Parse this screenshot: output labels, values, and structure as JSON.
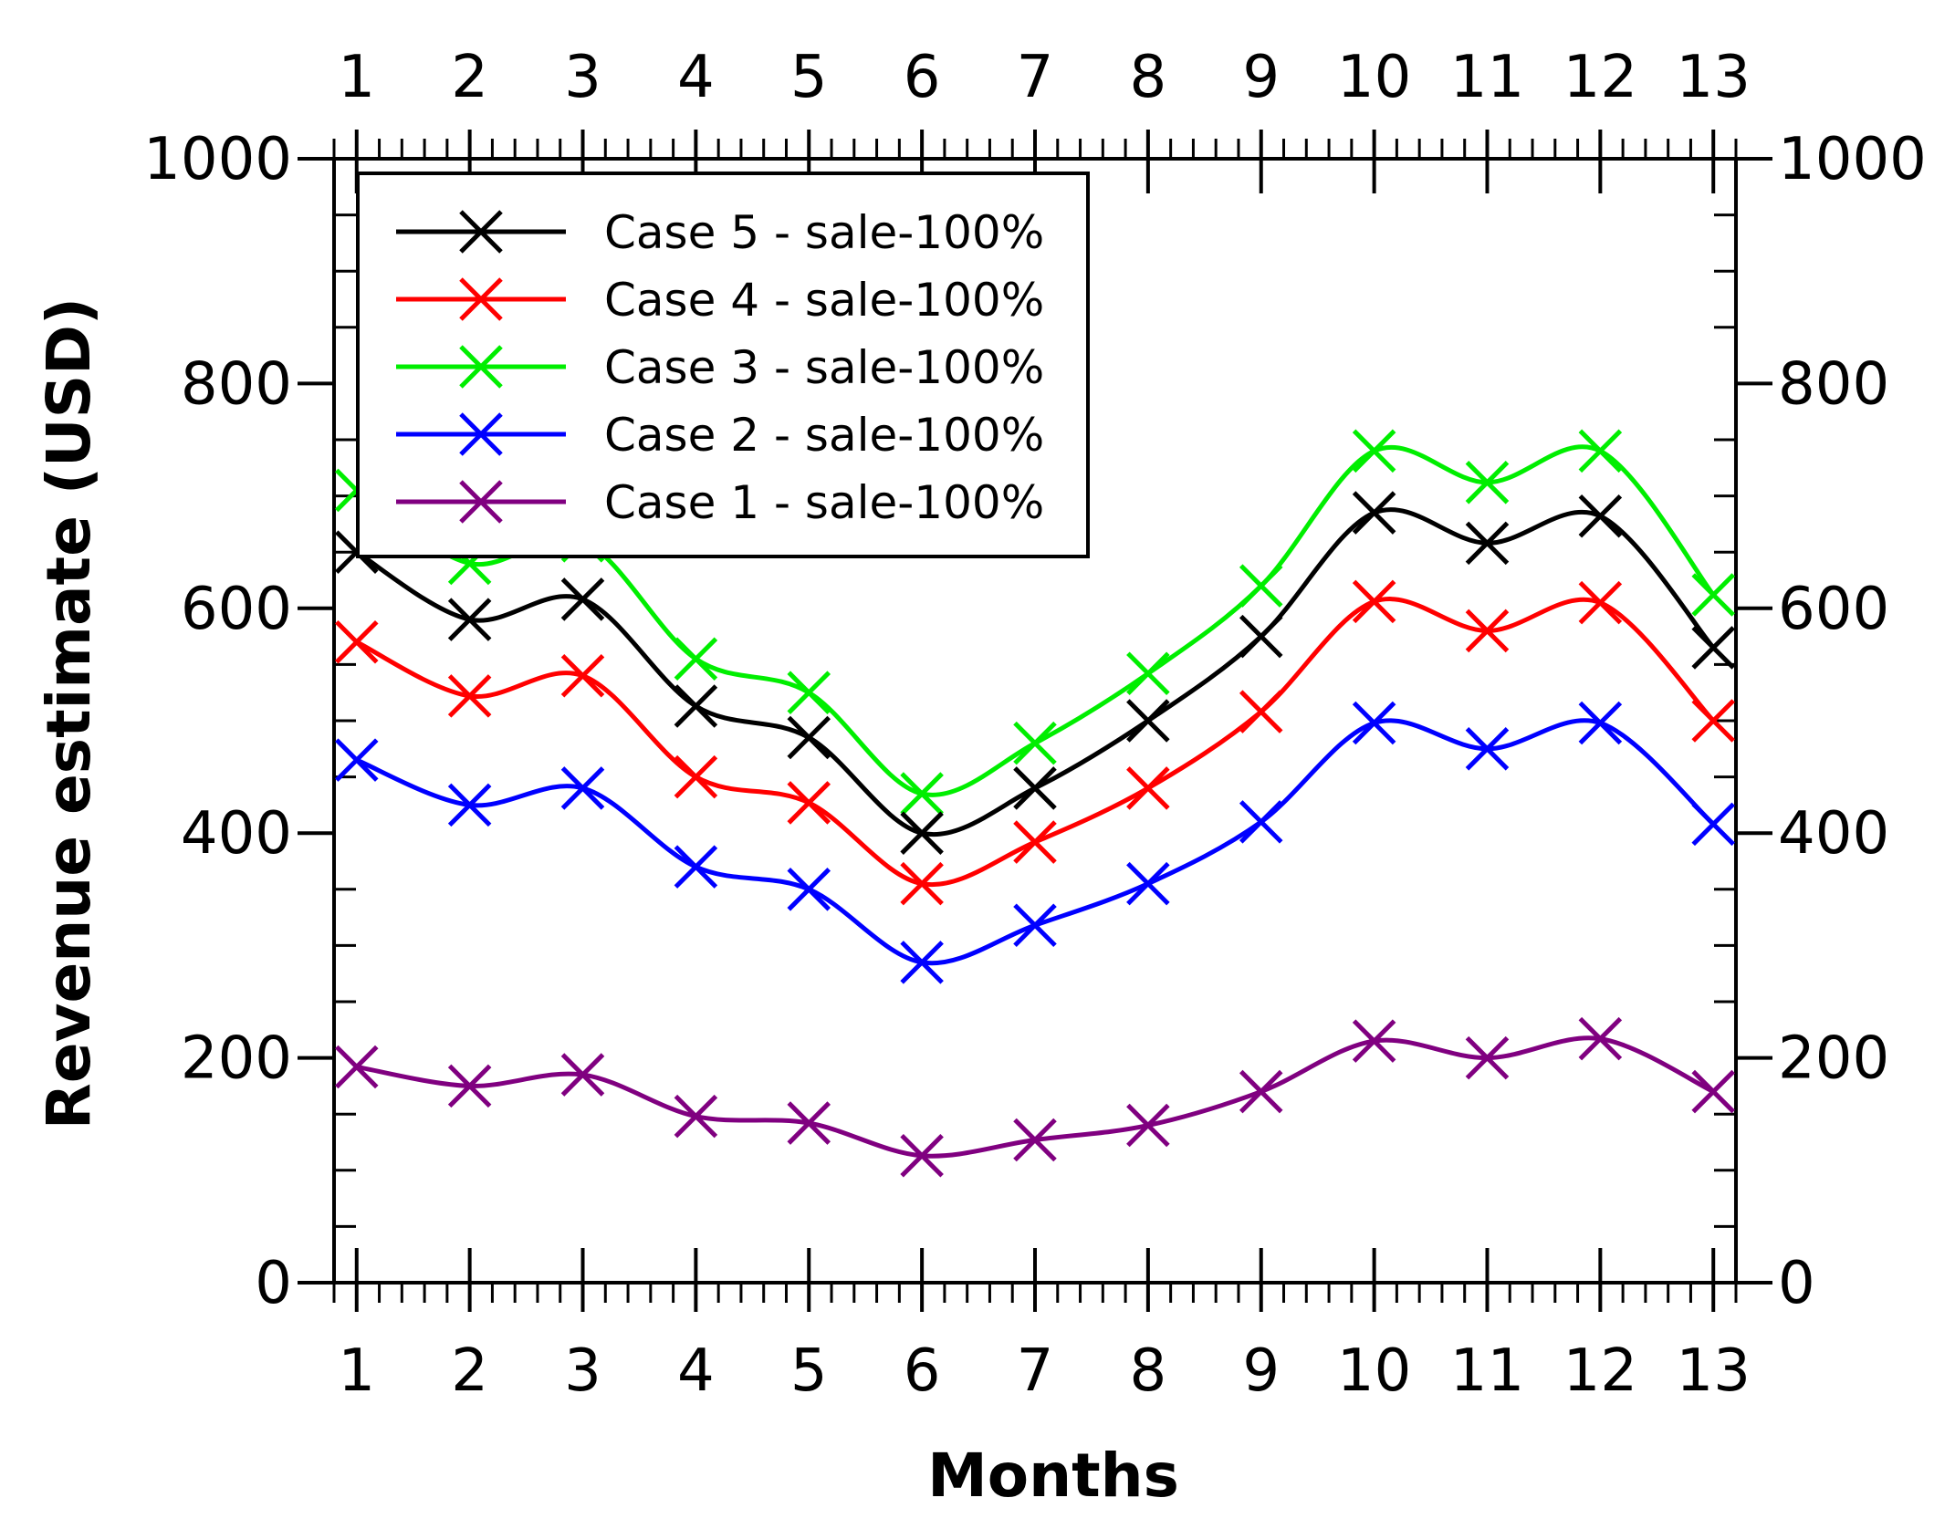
{
  "chart_data": {
    "type": "line",
    "title": "",
    "xlabel": "Months",
    "ylabel": "Revenue estimate (USD)",
    "x": [
      1,
      2,
      3,
      4,
      5,
      6,
      7,
      8,
      9,
      10,
      11,
      12,
      13
    ],
    "xlim": [
      0.8,
      13.2
    ],
    "ylim": [
      0,
      1000
    ],
    "y_major_ticks": [
      0,
      200,
      400,
      600,
      800,
      1000
    ],
    "y_minor_step": 50,
    "x_minor_step": 0.2,
    "grid": false,
    "legend_position": "top-left",
    "marker": "x",
    "series": [
      {
        "name": "Case 5 - sale-100%",
        "color": "#000000",
        "values": [
          650,
          590,
          608,
          513,
          485,
          400,
          440,
          500,
          575,
          685,
          658,
          682,
          565
        ]
      },
      {
        "name": "Case 4 - sale-100%",
        "color": "#ff0000",
        "values": [
          570,
          522,
          540,
          450,
          427,
          355,
          392,
          440,
          508,
          606,
          580,
          605,
          500
        ]
      },
      {
        "name": "Case 3 - sale-100%",
        "color": "#00ee00",
        "values": [
          705,
          640,
          660,
          555,
          525,
          435,
          480,
          542,
          620,
          740,
          712,
          740,
          612
        ]
      },
      {
        "name": "Case 2 - sale-100%",
        "color": "#0000ff",
        "values": [
          465,
          425,
          440,
          370,
          350,
          285,
          318,
          355,
          410,
          498,
          475,
          498,
          408
        ]
      },
      {
        "name": "Case 1 - sale-100%",
        "color": "#800080",
        "values": [
          192,
          175,
          185,
          148,
          142,
          113,
          127,
          140,
          170,
          215,
          200,
          217,
          170
        ]
      }
    ]
  }
}
